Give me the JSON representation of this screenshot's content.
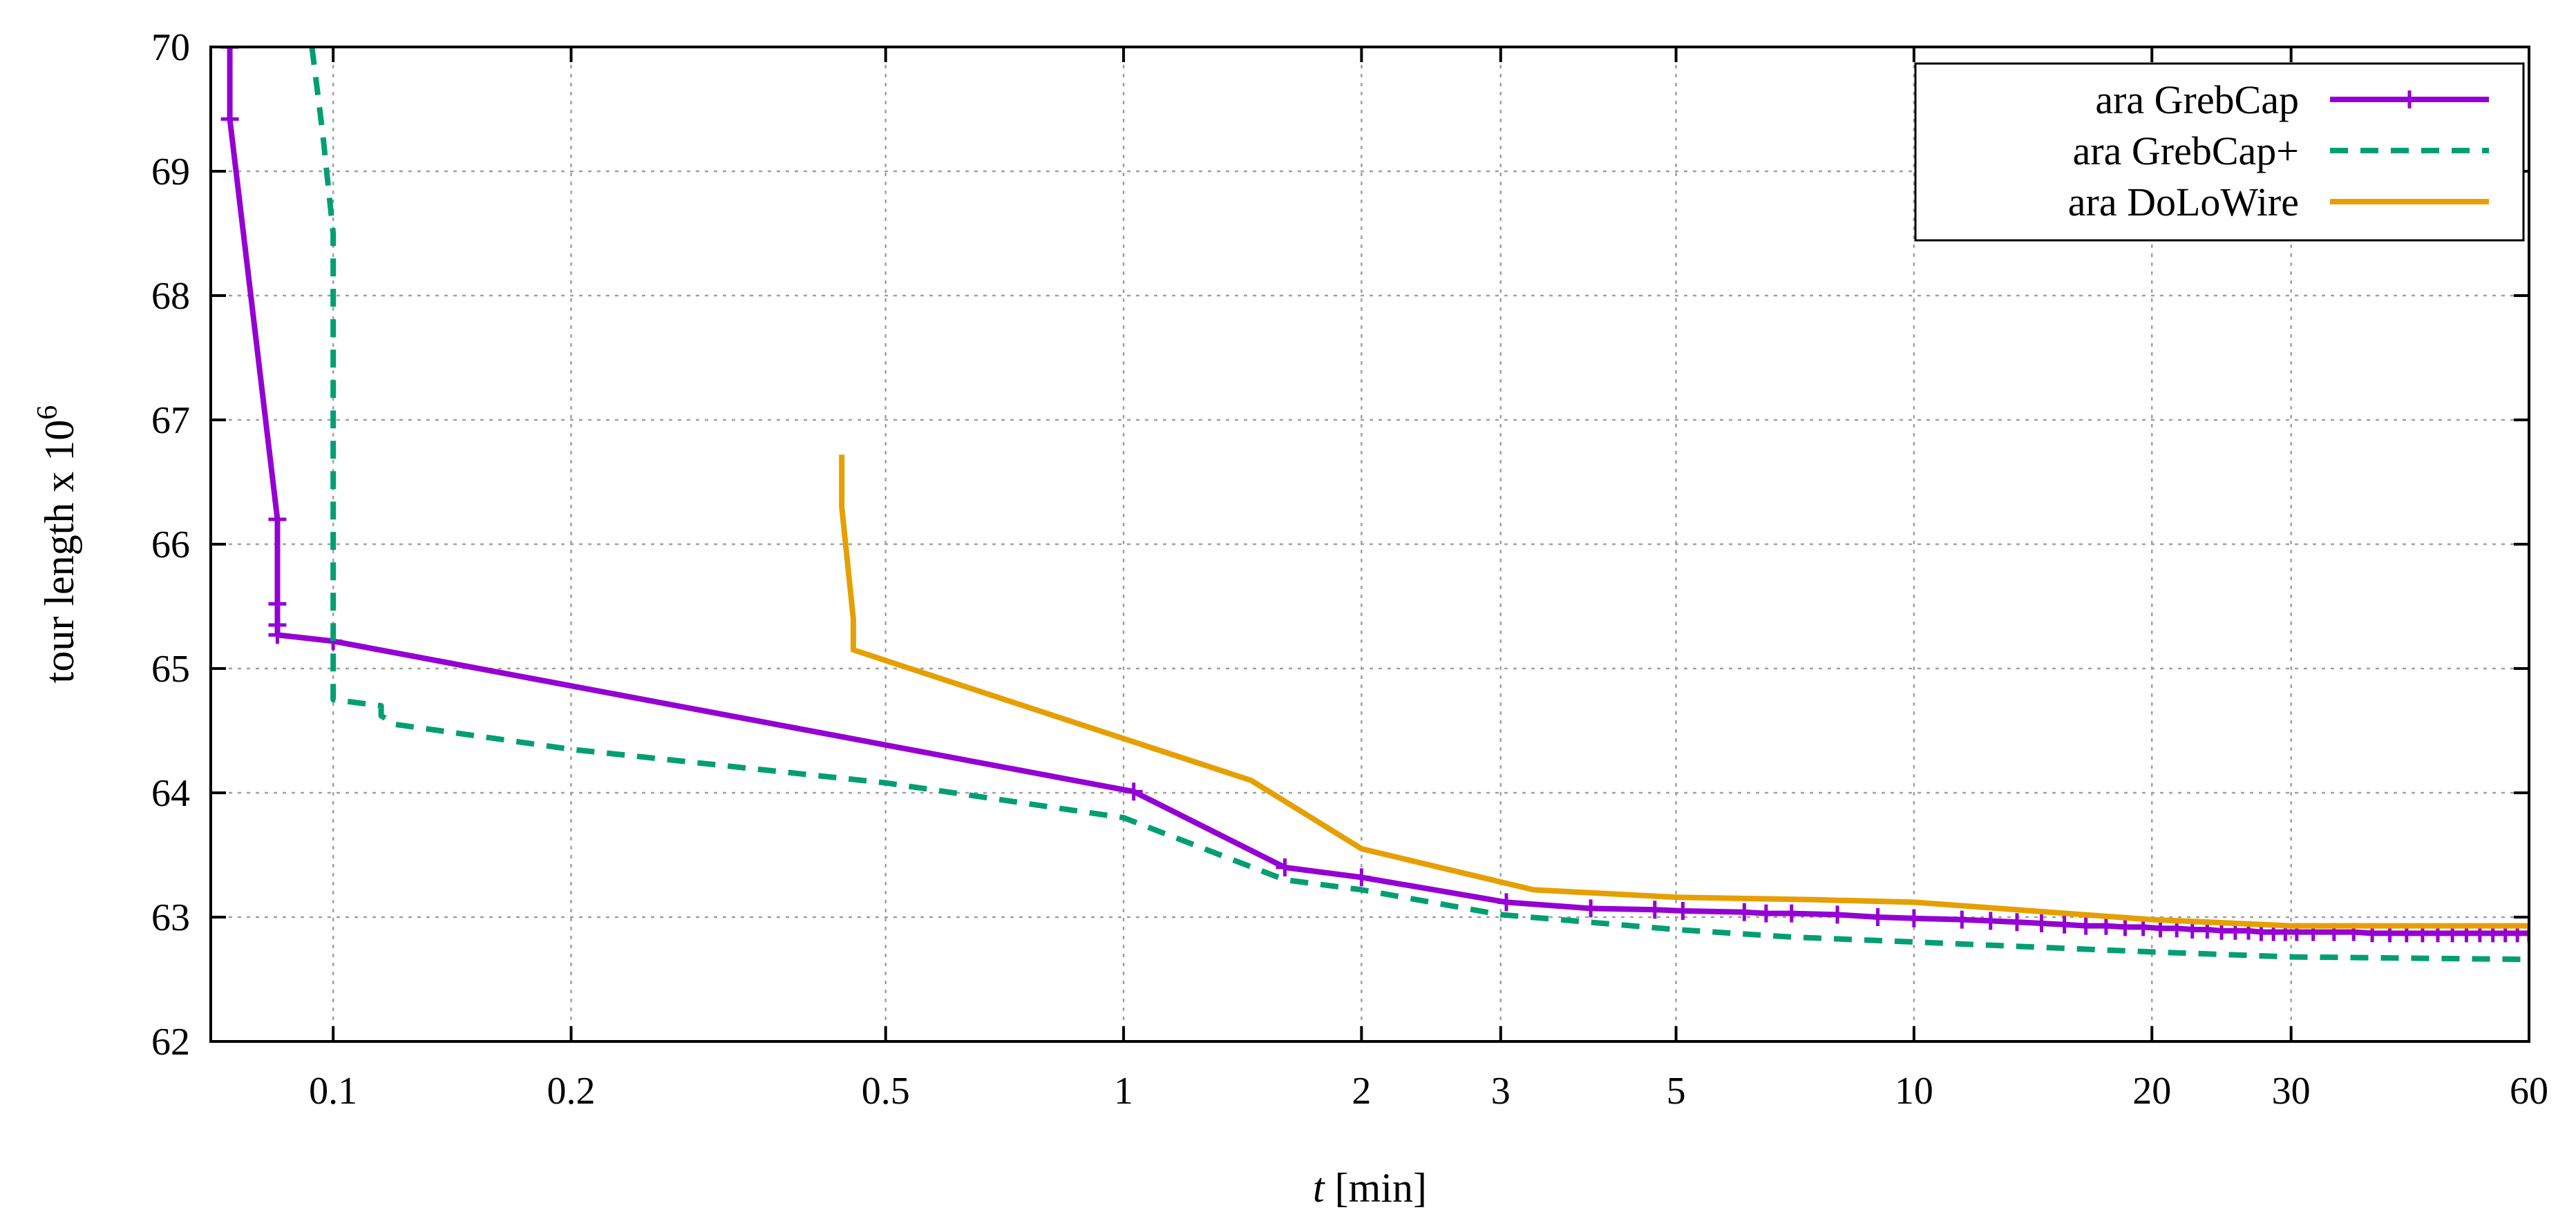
{
  "chart_data": {
    "type": "line",
    "x_scale": "log",
    "xlim": [
      0.07,
      60
    ],
    "ylim": [
      62,
      70
    ],
    "grid": true,
    "legend_position": "top-right",
    "xlabel_italic": "t",
    "xlabel_rest": " [min]",
    "ylabel": "tour length x 10",
    "ylabel_superscript": "6",
    "x_ticks": [
      {
        "value": 0.1,
        "label": "0.1"
      },
      {
        "value": 0.2,
        "label": "0.2"
      },
      {
        "value": 0.5,
        "label": "0.5"
      },
      {
        "value": 1,
        "label": "1"
      },
      {
        "value": 2,
        "label": "2"
      },
      {
        "value": 3,
        "label": "3"
      },
      {
        "value": 5,
        "label": "5"
      },
      {
        "value": 10,
        "label": "10"
      },
      {
        "value": 20,
        "label": "20"
      },
      {
        "value": 30,
        "label": "30"
      },
      {
        "value": 60,
        "label": "60"
      }
    ],
    "y_ticks": [
      {
        "value": 62,
        "label": "62"
      },
      {
        "value": 63,
        "label": "63"
      },
      {
        "value": 64,
        "label": "64"
      },
      {
        "value": 65,
        "label": "65"
      },
      {
        "value": 66,
        "label": "66"
      },
      {
        "value": 67,
        "label": "67"
      },
      {
        "value": 68,
        "label": "68"
      },
      {
        "value": 69,
        "label": "69"
      },
      {
        "value": 70,
        "label": "70"
      }
    ],
    "series": [
      {
        "name": "ara GrebCap",
        "color": "#9400d3",
        "dash": "solid",
        "markers": true,
        "x": [
          0.074,
          0.074,
          0.085,
          0.085,
          0.085,
          0.085,
          0.1,
          1.03,
          1.6,
          2.0,
          3.05,
          3.9,
          4.7,
          5.1,
          6.1,
          6.5,
          7.0,
          8.0,
          9.0,
          10.0,
          11.5,
          12.5,
          13.5,
          14.5,
          15.5,
          16.5,
          17.5,
          18.5,
          19.5,
          20.5,
          21.5,
          22.5,
          23.5,
          24.5,
          25.5,
          26.5,
          27.5,
          28.5,
          29.5,
          30.5,
          32,
          34,
          36,
          38,
          40,
          42,
          44,
          46,
          48,
          50,
          52,
          54,
          56,
          58,
          60
        ],
        "y": [
          70.0,
          69.42,
          66.2,
          65.52,
          65.35,
          65.27,
          65.22,
          64.01,
          63.4,
          63.32,
          63.12,
          63.07,
          63.06,
          63.05,
          63.04,
          63.03,
          63.03,
          63.02,
          63.0,
          62.99,
          62.98,
          62.97,
          62.96,
          62.95,
          62.94,
          62.93,
          62.93,
          62.92,
          62.92,
          62.91,
          62.91,
          62.9,
          62.9,
          62.89,
          62.89,
          62.89,
          62.88,
          62.88,
          62.88,
          62.88,
          62.88,
          62.88,
          62.88,
          62.87,
          62.87,
          62.87,
          62.87,
          62.87,
          62.87,
          62.87,
          62.87,
          62.87,
          62.87,
          62.87,
          62.87
        ]
      },
      {
        "name": "ara GrebCap+",
        "color": "#009e73",
        "dash": "dashed",
        "markers": false,
        "x": [
          0.094,
          0.097,
          0.1,
          0.1,
          0.1,
          0.115,
          0.115,
          0.12,
          0.2,
          0.5,
          1.0,
          1.6,
          2.0,
          3.0,
          5.0,
          7.0,
          10.0,
          20.0,
          30.0,
          60.0
        ],
        "y": [
          70.0,
          69.3,
          68.5,
          64.75,
          64.75,
          64.7,
          64.62,
          64.55,
          64.35,
          64.08,
          63.8,
          63.3,
          63.22,
          63.02,
          62.9,
          62.84,
          62.8,
          62.72,
          62.68,
          62.66
        ]
      },
      {
        "name": "ara DoLoWire",
        "color": "#e69f00",
        "dash": "solid",
        "markers": false,
        "x": [
          0.44,
          0.44,
          0.455,
          0.455,
          1.45,
          2.0,
          3.3,
          5.0,
          7.5,
          10.0,
          20.0,
          30.0,
          60.0
        ],
        "y": [
          66.72,
          66.3,
          65.4,
          65.15,
          64.1,
          63.55,
          63.22,
          63.16,
          63.14,
          63.12,
          62.98,
          62.93,
          62.93
        ]
      }
    ]
  }
}
